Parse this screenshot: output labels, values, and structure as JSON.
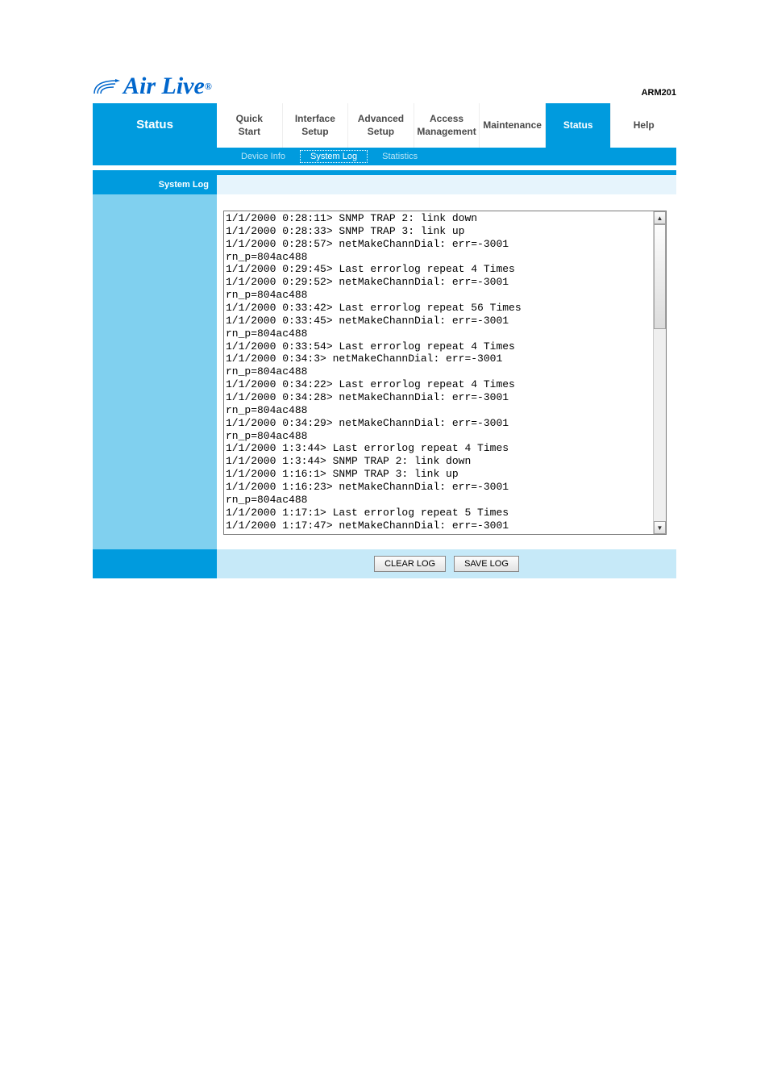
{
  "brand": {
    "name": "Air Live",
    "registered": "®",
    "model": "ARM201",
    "logo_color": "#0055bb"
  },
  "colors": {
    "primary_blue": "#009bde",
    "light_blue_panel": "#80d0ef",
    "pale_blue": "#e6f4fc",
    "footer_blue": "#c6e9f8",
    "text_gray": "#4a4a4a"
  },
  "left_title": "Status",
  "tabs": [
    {
      "label": "Quick\nStart",
      "active": false
    },
    {
      "label": "Interface\nSetup",
      "active": false
    },
    {
      "label": "Advanced\nSetup",
      "active": false
    },
    {
      "label": "Access\nManagement",
      "active": false
    },
    {
      "label": "Maintenance",
      "active": false
    },
    {
      "label": "Status",
      "active": true
    },
    {
      "label": "Help",
      "active": false
    }
  ],
  "sub_tabs": [
    {
      "label": "Device Info",
      "active": false
    },
    {
      "label": "System Log",
      "active": true
    },
    {
      "label": "Statistics",
      "active": false
    }
  ],
  "section_label": "System Log",
  "log_lines": [
    "1/1/2000 0:28:11> SNMP TRAP 2: link down",
    "1/1/2000 0:28:33> SNMP TRAP 3: link up",
    "1/1/2000 0:28:57> netMakeChannDial: err=-3001",
    "rn_p=804ac488",
    "1/1/2000 0:29:45> Last errorlog repeat 4 Times",
    "1/1/2000 0:29:52> netMakeChannDial: err=-3001",
    "rn_p=804ac488",
    "1/1/2000 0:33:42> Last errorlog repeat 56 Times",
    "1/1/2000 0:33:45> netMakeChannDial: err=-3001",
    "rn_p=804ac488",
    "1/1/2000 0:33:54> Last errorlog repeat 4 Times",
    "1/1/2000 0:34:3> netMakeChannDial: err=-3001",
    "rn_p=804ac488",
    "1/1/2000 0:34:22> Last errorlog repeat 4 Times",
    "1/1/2000 0:34:28> netMakeChannDial: err=-3001",
    "rn_p=804ac488",
    "1/1/2000 0:34:29> netMakeChannDial: err=-3001",
    "rn_p=804ac488",
    "1/1/2000 1:3:44> Last errorlog repeat 4 Times",
    "1/1/2000 1:3:44> SNMP TRAP 2: link down",
    "1/1/2000 1:16:1> SNMP TRAP 3: link up",
    "1/1/2000 1:16:23> netMakeChannDial: err=-3001",
    "rn_p=804ac488",
    "1/1/2000 1:17:1> Last errorlog repeat 5 Times",
    "1/1/2000 1:17:47> netMakeChannDial: err=-3001"
  ],
  "buttons": {
    "clear": "CLEAR LOG",
    "save": "SAVE LOG"
  }
}
